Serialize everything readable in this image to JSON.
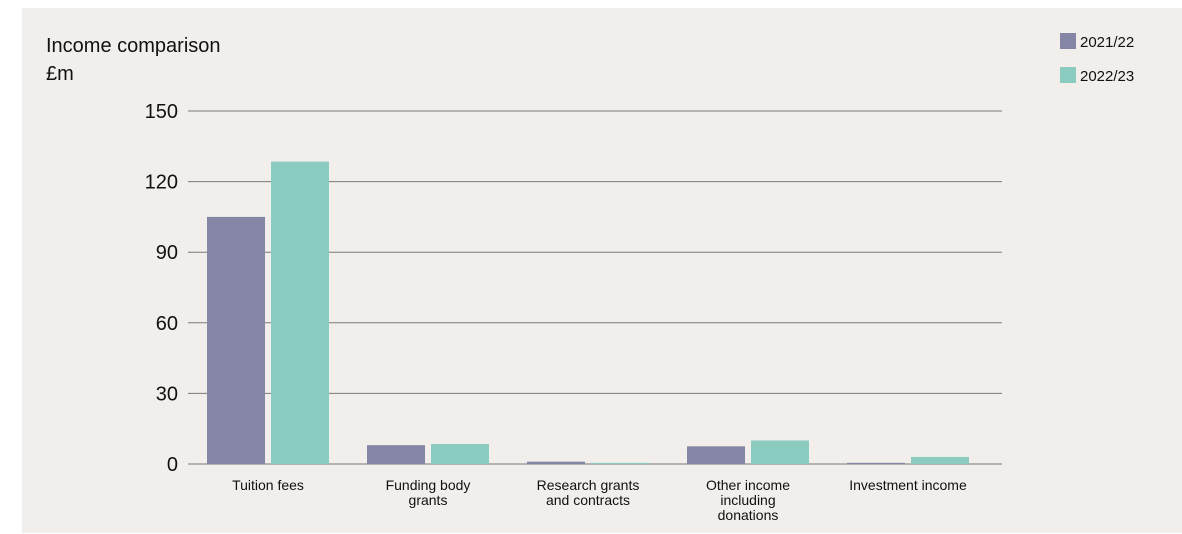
{
  "chart_data": {
    "type": "bar",
    "title": "Income comparison",
    "ylabel": "£m",
    "xlabel": "",
    "ylim": [
      0,
      150
    ],
    "yticks": [
      "0",
      "30",
      "60",
      "90",
      "120",
      "150"
    ],
    "grid": true,
    "legend_position": "top-right",
    "categories": [
      [
        "Tuition fees"
      ],
      [
        "Funding body",
        "grants"
      ],
      [
        "Research grants",
        "and contracts"
      ],
      [
        "Other income",
        "including",
        "donations"
      ],
      [
        "Investment income"
      ]
    ],
    "series": [
      {
        "name": "2021/22",
        "color": "#8585a5",
        "values": [
          105,
          8,
          1,
          7.5,
          0.5
        ]
      },
      {
        "name": "2022/23",
        "color": "#8ccbc0",
        "values": [
          128.5,
          8.5,
          0.5,
          10,
          3
        ]
      }
    ]
  },
  "colors": {
    "background": "#f1eeeb",
    "gridline": "#7a7a7a",
    "text": "#111111"
  }
}
